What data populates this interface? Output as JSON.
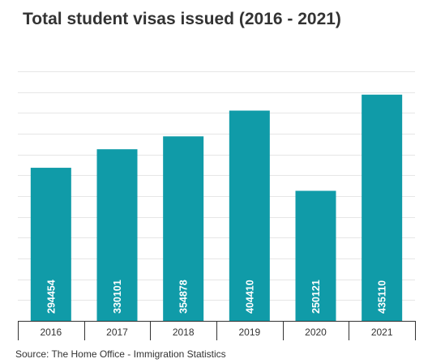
{
  "title": "Total student visas issued (2016 - 2021)",
  "source": "Source: The Home Office - Immigration Statistics",
  "colors": {
    "bar": "#109ba8",
    "grid": "#e6e6e6",
    "axis": "#333333",
    "bar_label": "#ffffff",
    "text": "#333333"
  },
  "chart_data": {
    "type": "bar",
    "title": "Total student visas issued (2016 - 2021)",
    "xlabel": "",
    "ylabel": "",
    "categories": [
      "2016",
      "2017",
      "2018",
      "2019",
      "2020",
      "2021"
    ],
    "values": [
      294454,
      330101,
      354878,
      404410,
      250121,
      435110
    ],
    "ylim": [
      0,
      480000
    ],
    "grid": true,
    "y_tick_labels_visible": false,
    "data_labels": "inside-base-vertical",
    "legend": "none"
  }
}
